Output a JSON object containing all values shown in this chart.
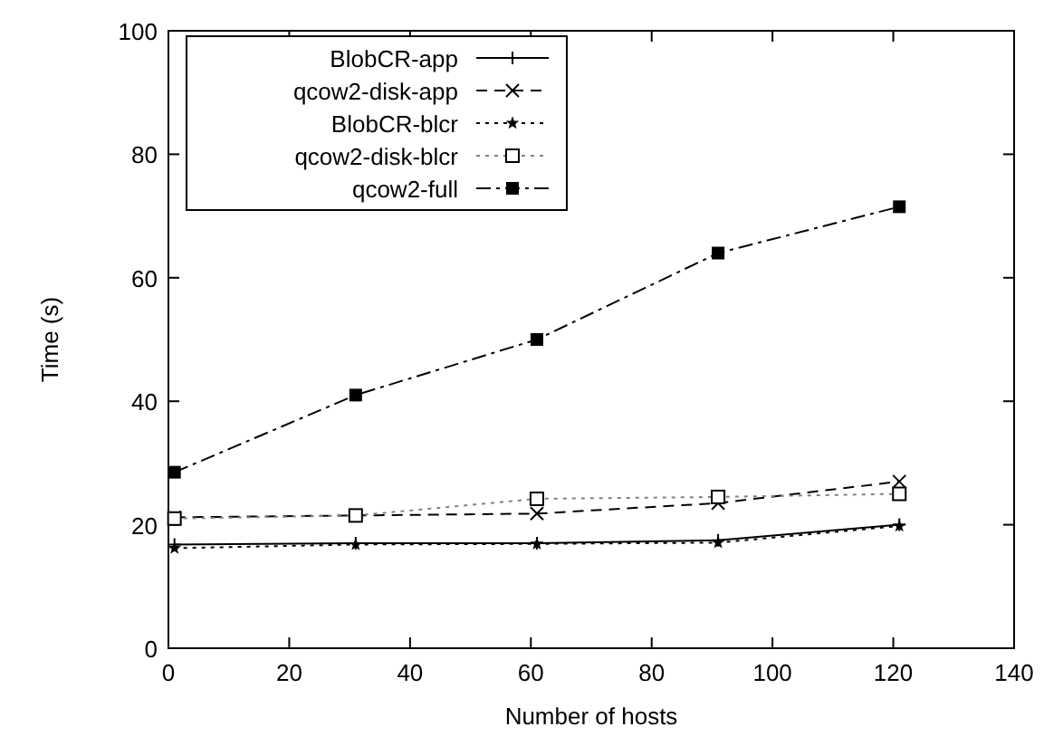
{
  "chart_data": {
    "type": "line",
    "xlabel": "Number of hosts",
    "ylabel": "Time (s)",
    "xlim": [
      0,
      140
    ],
    "xticks": [
      0,
      20,
      40,
      60,
      80,
      100,
      120,
      140
    ],
    "ylim": [
      0,
      100
    ],
    "yticks": [
      0,
      20,
      40,
      60,
      80,
      100
    ],
    "grid": false,
    "legend": "top left",
    "x": [
      1,
      31,
      61,
      91,
      121
    ],
    "series": [
      {
        "name": "BlobCR-app",
        "color": "#000000",
        "line_style": "solid",
        "marker": "plus",
        "values": [
          16.8,
          17,
          17,
          17.5,
          20
        ]
      },
      {
        "name": "qcow2-disk-app",
        "color": "#000000",
        "line_style": "dashed",
        "marker": "x",
        "values": [
          21.2,
          21.5,
          21.8,
          23.5,
          27
        ]
      },
      {
        "name": "BlobCR-blcr",
        "color": "#000000",
        "line_style": "dotted",
        "marker": "star",
        "values": [
          16.2,
          16.8,
          16.9,
          17.1,
          19.8
        ]
      },
      {
        "name": "qcow2-disk-blcr",
        "color": "#808080",
        "line_style": "dotted",
        "marker": "square-open",
        "values": [
          21,
          21.5,
          24.2,
          24.5,
          25
        ]
      },
      {
        "name": "qcow2-full",
        "color": "#000000",
        "line_style": "dashdot",
        "marker": "square",
        "values": [
          28.5,
          41,
          50,
          64,
          71.5
        ]
      }
    ]
  }
}
